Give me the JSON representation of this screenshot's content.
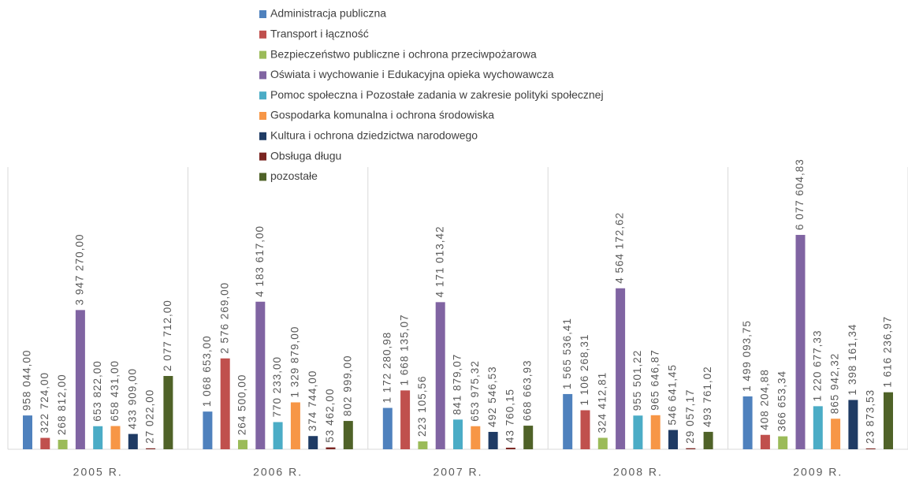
{
  "chart_data": {
    "type": "bar",
    "categories": [
      "2005 R.",
      "2006 R.",
      "2007 R.",
      "2008 R.",
      "2009 R."
    ],
    "ylim": [
      0,
      8000000
    ],
    "series": [
      {
        "name": "Administracja publiczna",
        "color": "#4f81bd",
        "values": [
          958044.0,
          1068653.0,
          1172280.98,
          1565536.41,
          1499093.75
        ],
        "value_labels": [
          "958 044,00",
          "1 068 653,00",
          "1 172 280,98",
          "1 565 536,41",
          "1 499 093,75"
        ]
      },
      {
        "name": "Transport i łączność",
        "color": "#c0504d",
        "values": [
          322724.0,
          2576269.0,
          1668135.07,
          1106268.31,
          408204.88
        ],
        "value_labels": [
          "322 724,00",
          "2 576 269,00",
          "1 668 135,07",
          "1 106 268,31",
          "408 204,88"
        ]
      },
      {
        "name": "Bezpieczeństwo publiczne i ochrona przeciwpożarowa",
        "color": "#9bbb59",
        "values": [
          268812.0,
          264500.0,
          223105.56,
          324412.81,
          366653.34
        ],
        "value_labels": [
          "268 812,00",
          "264 500,00",
          "223 105,56",
          "324 412,81",
          "366 653,34"
        ]
      },
      {
        "name": "Oświata i wychowanie i Edukacyjna opieka wychowawcza",
        "color": "#8064a2",
        "values": [
          3947270.0,
          4183617.0,
          4171013.42,
          4564172.62,
          6077604.83
        ],
        "value_labels": [
          "3 947 270,00",
          "4 183 617,00",
          "4 171 013,42",
          "4 564 172,62",
          "6 077 604,83"
        ]
      },
      {
        "name": "Pomoc społeczna i Pozostałe zadania w zakresie polityki społecznej",
        "color": "#4bacc6",
        "values": [
          653822.0,
          770233.0,
          841879.07,
          955501.22,
          1220677.33
        ],
        "value_labels": [
          "653 822,00",
          "770 233,00",
          "841 879,07",
          "955 501,22",
          "1 220 677,33"
        ]
      },
      {
        "name": "Gospodarka komunalna i ochrona środowiska",
        "color": "#f79646",
        "values": [
          658431.0,
          1329879.0,
          653975.32,
          965646.87,
          865942.32
        ],
        "value_labels": [
          "658 431,00",
          "1 329 879,00",
          "653 975,32",
          "965 646,87",
          "865 942,32"
        ]
      },
      {
        "name": "Kultura i ochrona dziedzictwa narodowego",
        "color": "#1f3b64",
        "values": [
          433909.0,
          374744.0,
          492546.53,
          546641.45,
          1398161.34
        ],
        "value_labels": [
          "433 909,00",
          "374 744,00",
          "492 546,53",
          "546 641,45",
          "1 398 161,34"
        ]
      },
      {
        "name": "Obsługa długu",
        "color": "#7a2521",
        "values": [
          27022.0,
          53462.0,
          43760.15,
          29057.17,
          23873.53
        ],
        "value_labels": [
          "27 022,00",
          "53 462,00",
          "43 760,15",
          "29 057,17",
          "23 873,53"
        ]
      },
      {
        "name": "pozostałe",
        "color": "#4f6228",
        "values": [
          2077712.0,
          802999.0,
          668663.93,
          493761.02,
          1616236.97
        ],
        "value_labels": [
          "2 077 712,00",
          "802 999,00",
          "668 663,93",
          "493 761,02",
          "1 616 236,97"
        ]
      }
    ]
  }
}
